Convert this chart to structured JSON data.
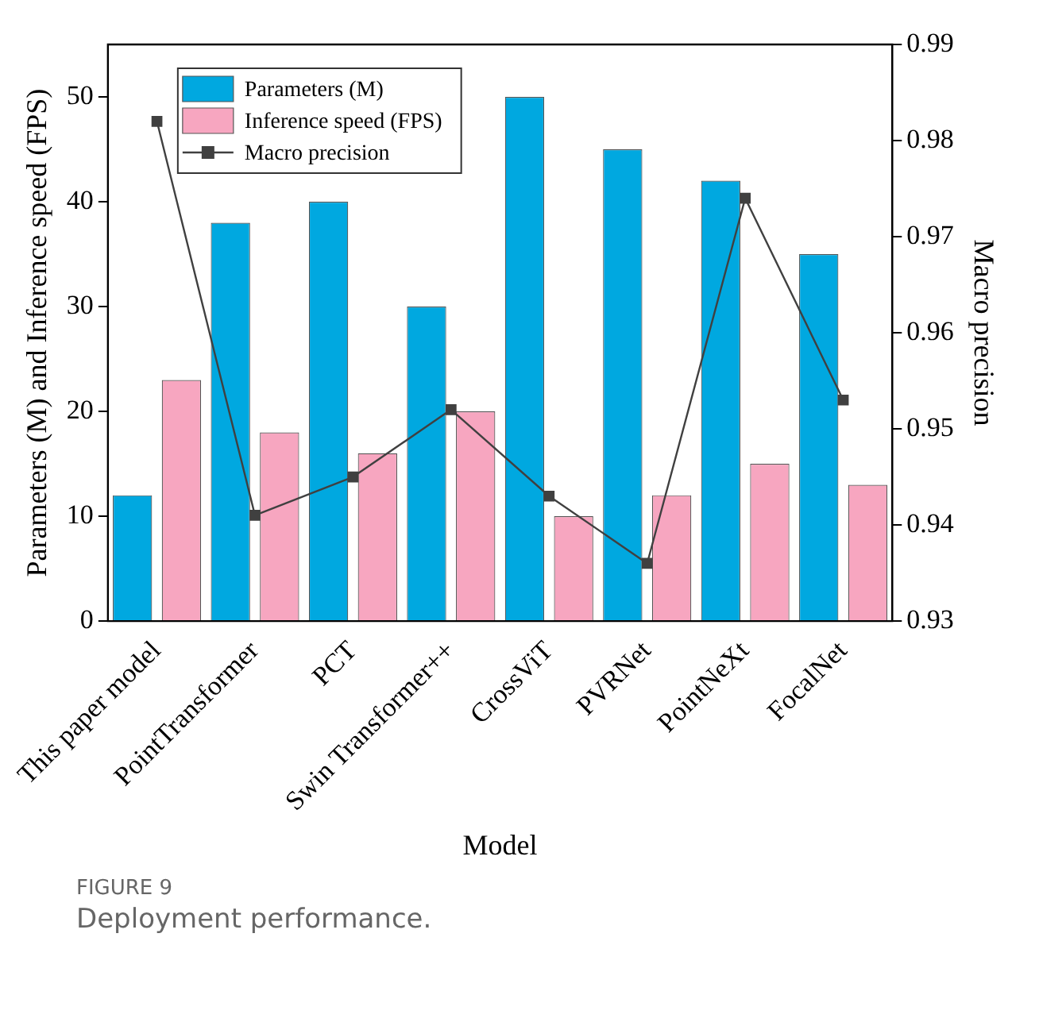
{
  "chart_data": {
    "type": "bar",
    "xlabel": "Model",
    "ylabel": "Parameters (M) and Inference speed (FPS)",
    "y2label": "Macro precision",
    "categories": [
      "This paper model",
      "PointTransformer",
      "PCT",
      "Swin Transformer++",
      "CrossViT",
      "PVRNet",
      "PointNeXt",
      "FocalNet"
    ],
    "series": [
      {
        "name": "Parameters (M)",
        "color": "#00a8e0",
        "values": [
          12,
          38,
          40,
          30,
          50,
          45,
          42,
          35
        ]
      },
      {
        "name": "Inference speed (FPS)",
        "color": "#f7a6c0",
        "values": [
          23,
          18,
          16,
          20,
          10,
          12,
          15,
          13
        ]
      },
      {
        "name": "Macro precision",
        "type": "line",
        "axis": "y2",
        "color": "#404040",
        "marker": "square",
        "values": [
          0.982,
          0.941,
          0.945,
          0.952,
          0.943,
          0.936,
          0.974,
          0.953
        ]
      }
    ],
    "ylim": [
      0,
      55
    ],
    "yticks": [
      0,
      10,
      20,
      30,
      40,
      50
    ],
    "y2lim": [
      0.93,
      0.99
    ],
    "y2ticks": [
      0.93,
      0.94,
      0.95,
      0.96,
      0.97,
      0.98,
      0.99
    ],
    "grid": false,
    "legend": "top left",
    "annotations": [
      "FIGURE 9",
      "Deployment performance."
    ]
  }
}
